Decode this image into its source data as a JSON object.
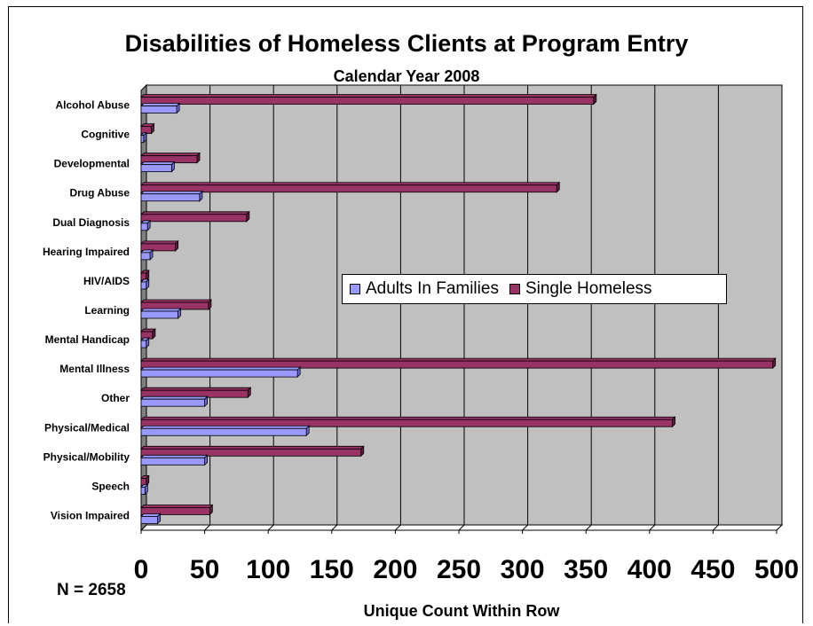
{
  "chart_data": {
    "type": "bar",
    "orientation": "horizontal",
    "title": "Disabilities of Homeless Clients at Program Entry",
    "subtitle": "Calendar Year 2008",
    "xlabel": "Unique Count Within Row",
    "note": "N = 2658",
    "xlim": [
      0,
      500
    ],
    "xticks": [
      "0",
      "50",
      "100",
      "150",
      "200",
      "250",
      "300",
      "350",
      "400",
      "450",
      "500"
    ],
    "categories": [
      "Alcohol Abuse",
      "Cognitive",
      "Developmental",
      "Drug Abuse",
      "Dual Diagnosis",
      "Hearing Impaired",
      "HIV/AIDS",
      "Learning",
      "Mental Handicap",
      "Mental Illness",
      "Other",
      "Physical/Medical",
      "Physical/Mobility",
      "Speech",
      "Vision Impaired"
    ],
    "series": [
      {
        "name": "Adults In Families",
        "color": "#9999ff",
        "values": [
          28,
          2,
          24,
          46,
          5,
          7,
          4,
          29,
          4,
          123,
          50,
          130,
          50,
          3,
          13
        ]
      },
      {
        "name": "Single Homeless",
        "color": "#993366",
        "values": [
          356,
          8,
          44,
          327,
          83,
          27,
          4,
          53,
          9,
          497,
          84,
          418,
          173,
          4,
          54
        ]
      }
    ],
    "legend_position": "center-right",
    "grid": true,
    "plot_background": "#c0c0c0"
  }
}
